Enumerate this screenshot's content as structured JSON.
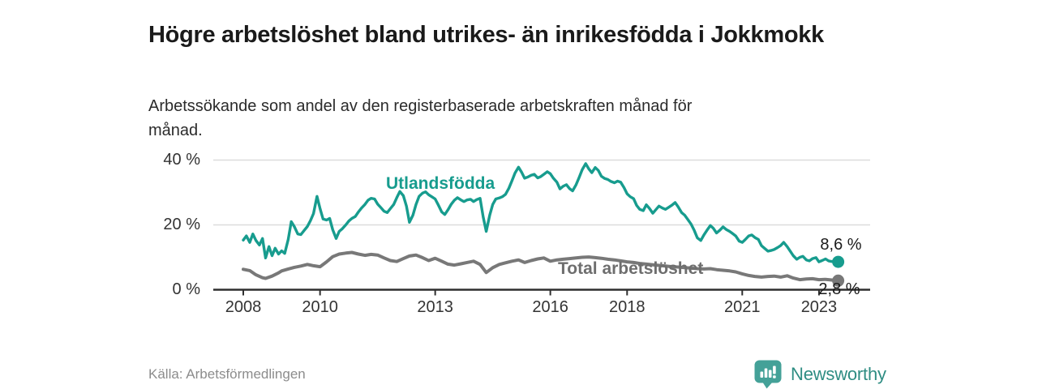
{
  "header": {
    "title": "Högre arbetslöshet bland utrikes- än inrikesfödda i Jokkmokk",
    "subtitle": "Arbetssökande som andel av den registerbaserade arbetskraften månad för månad."
  },
  "footer": {
    "source": "Källa: Arbetsförmedlingen",
    "brand_name": "Newsworthy",
    "brand_icon": "bar-chart-speech-bubble-icon"
  },
  "colors": {
    "accent_teal": "#179c8e",
    "series_gray": "#787878",
    "grid": "#dcdcdc",
    "axis": "#2f2f2f",
    "text_dark": "#1a1a1a",
    "text_muted": "#8c8c8c",
    "brand_teal": "#2f8d83",
    "brand_icon_teal": "#44a198"
  },
  "chart_data": {
    "type": "line",
    "title": "Högre arbetslöshet bland utrikes- än inrikesfödda i Jokkmokk",
    "subtitle": "Arbetssökande som andel av den registerbaserade arbetskraften månad för månad.",
    "xlabel": "",
    "ylabel": "",
    "grid": "horizontal",
    "legend_position": "inline-labels",
    "xlim": [
      2007.2,
      2024.3
    ],
    "ylim": [
      0,
      42
    ],
    "y_ticks": [
      {
        "value": 0,
        "label": "0 %"
      },
      {
        "value": 20,
        "label": "20 %"
      },
      {
        "value": 40,
        "label": "40 %"
      }
    ],
    "x_ticks": [
      {
        "year": 2008,
        "label": "2008"
      },
      {
        "year": 2010,
        "label": "2010"
      },
      {
        "year": 2013,
        "label": "2013"
      },
      {
        "year": 2016,
        "label": "2016"
      },
      {
        "year": 2018,
        "label": "2018"
      },
      {
        "year": 2021,
        "label": "2021"
      },
      {
        "year": 2023,
        "label": "2023"
      }
    ],
    "series": [
      {
        "name": "Utlandsfödda",
        "color": "#179c8e",
        "width": 3.4,
        "end_label": "8,6 %",
        "end_value": 8.6,
        "points": [
          [
            2008.0,
            15.3
          ],
          [
            2008.08,
            16.6
          ],
          [
            2008.17,
            14.6
          ],
          [
            2008.25,
            17.2
          ],
          [
            2008.33,
            15.2
          ],
          [
            2008.42,
            13.8
          ],
          [
            2008.5,
            15.8
          ],
          [
            2008.58,
            9.8
          ],
          [
            2008.67,
            13.3
          ],
          [
            2008.75,
            10.5
          ],
          [
            2008.83,
            12.8
          ],
          [
            2008.92,
            11.0
          ],
          [
            2009.0,
            12.0
          ],
          [
            2009.08,
            11.2
          ],
          [
            2009.17,
            15.5
          ],
          [
            2009.25,
            21.0
          ],
          [
            2009.33,
            19.5
          ],
          [
            2009.42,
            17.2
          ],
          [
            2009.5,
            17.0
          ],
          [
            2009.58,
            18.2
          ],
          [
            2009.67,
            19.5
          ],
          [
            2009.75,
            21.3
          ],
          [
            2009.83,
            23.5
          ],
          [
            2009.92,
            28.8
          ],
          [
            2010.0,
            25.0
          ],
          [
            2010.08,
            21.8
          ],
          [
            2010.17,
            21.5
          ],
          [
            2010.25,
            22.0
          ],
          [
            2010.33,
            18.5
          ],
          [
            2010.42,
            15.8
          ],
          [
            2010.5,
            18.0
          ],
          [
            2010.58,
            18.8
          ],
          [
            2010.67,
            20.0
          ],
          [
            2010.75,
            21.2
          ],
          [
            2010.83,
            22.0
          ],
          [
            2010.92,
            22.6
          ],
          [
            2011.0,
            24.0
          ],
          [
            2011.08,
            25.2
          ],
          [
            2011.17,
            26.3
          ],
          [
            2011.25,
            27.6
          ],
          [
            2011.33,
            28.2
          ],
          [
            2011.42,
            28.0
          ],
          [
            2011.5,
            26.4
          ],
          [
            2011.58,
            25.4
          ],
          [
            2011.67,
            24.2
          ],
          [
            2011.75,
            23.8
          ],
          [
            2011.83,
            25.0
          ],
          [
            2011.92,
            26.3
          ],
          [
            2012.0,
            28.4
          ],
          [
            2012.08,
            30.3
          ],
          [
            2012.17,
            29.0
          ],
          [
            2012.25,
            25.8
          ],
          [
            2012.33,
            20.8
          ],
          [
            2012.42,
            23.0
          ],
          [
            2012.5,
            26.3
          ],
          [
            2012.58,
            28.8
          ],
          [
            2012.67,
            29.8
          ],
          [
            2012.75,
            30.2
          ],
          [
            2012.83,
            29.3
          ],
          [
            2012.92,
            28.6
          ],
          [
            2013.0,
            28.0
          ],
          [
            2013.08,
            26.2
          ],
          [
            2013.17,
            24.0
          ],
          [
            2013.25,
            23.2
          ],
          [
            2013.33,
            24.6
          ],
          [
            2013.42,
            26.4
          ],
          [
            2013.5,
            27.6
          ],
          [
            2013.58,
            28.4
          ],
          [
            2013.67,
            27.7
          ],
          [
            2013.75,
            27.2
          ],
          [
            2013.83,
            27.7
          ],
          [
            2013.92,
            27.9
          ],
          [
            2014.0,
            27.2
          ],
          [
            2014.08,
            27.8
          ],
          [
            2014.17,
            28.2
          ],
          [
            2014.25,
            22.5
          ],
          [
            2014.33,
            18.0
          ],
          [
            2014.42,
            23.0
          ],
          [
            2014.5,
            26.3
          ],
          [
            2014.58,
            28.0
          ],
          [
            2014.67,
            28.3
          ],
          [
            2014.75,
            28.7
          ],
          [
            2014.83,
            29.4
          ],
          [
            2014.92,
            31.3
          ],
          [
            2015.0,
            33.6
          ],
          [
            2015.08,
            36.0
          ],
          [
            2015.17,
            37.8
          ],
          [
            2015.25,
            36.3
          ],
          [
            2015.33,
            34.4
          ],
          [
            2015.42,
            34.8
          ],
          [
            2015.5,
            35.3
          ],
          [
            2015.58,
            35.6
          ],
          [
            2015.67,
            34.5
          ],
          [
            2015.75,
            34.9
          ],
          [
            2015.83,
            35.6
          ],
          [
            2015.92,
            36.4
          ],
          [
            2016.0,
            35.8
          ],
          [
            2016.08,
            34.4
          ],
          [
            2016.17,
            33.2
          ],
          [
            2016.25,
            31.1
          ],
          [
            2016.33,
            31.9
          ],
          [
            2016.42,
            32.4
          ],
          [
            2016.5,
            31.2
          ],
          [
            2016.58,
            30.5
          ],
          [
            2016.67,
            32.4
          ],
          [
            2016.75,
            34.6
          ],
          [
            2016.83,
            37.0
          ],
          [
            2016.92,
            38.9
          ],
          [
            2017.0,
            37.3
          ],
          [
            2017.08,
            36.1
          ],
          [
            2017.17,
            37.7
          ],
          [
            2017.25,
            36.8
          ],
          [
            2017.33,
            35.0
          ],
          [
            2017.42,
            34.3
          ],
          [
            2017.5,
            34.0
          ],
          [
            2017.58,
            33.4
          ],
          [
            2017.67,
            33.0
          ],
          [
            2017.75,
            33.5
          ],
          [
            2017.83,
            33.2
          ],
          [
            2017.92,
            31.5
          ],
          [
            2018.0,
            29.6
          ],
          [
            2018.08,
            28.7
          ],
          [
            2018.17,
            28.1
          ],
          [
            2018.25,
            26.0
          ],
          [
            2018.33,
            24.8
          ],
          [
            2018.42,
            24.4
          ],
          [
            2018.5,
            26.2
          ],
          [
            2018.58,
            25.1
          ],
          [
            2018.67,
            23.6
          ],
          [
            2018.75,
            24.7
          ],
          [
            2018.83,
            25.8
          ],
          [
            2018.92,
            25.2
          ],
          [
            2019.0,
            24.8
          ],
          [
            2019.08,
            25.4
          ],
          [
            2019.17,
            26.1
          ],
          [
            2019.25,
            26.9
          ],
          [
            2019.33,
            25.6
          ],
          [
            2019.42,
            23.8
          ],
          [
            2019.5,
            23.0
          ],
          [
            2019.58,
            21.7
          ],
          [
            2019.67,
            20.2
          ],
          [
            2019.75,
            18.3
          ],
          [
            2019.83,
            16.0
          ],
          [
            2019.92,
            15.2
          ],
          [
            2020.0,
            16.9
          ],
          [
            2020.08,
            18.3
          ],
          [
            2020.17,
            19.8
          ],
          [
            2020.25,
            18.9
          ],
          [
            2020.33,
            17.5
          ],
          [
            2020.42,
            18.4
          ],
          [
            2020.5,
            19.4
          ],
          [
            2020.58,
            18.6
          ],
          [
            2020.67,
            18.0
          ],
          [
            2020.75,
            17.3
          ],
          [
            2020.83,
            16.6
          ],
          [
            2020.92,
            15.0
          ],
          [
            2021.0,
            14.6
          ],
          [
            2021.08,
            15.5
          ],
          [
            2021.17,
            16.6
          ],
          [
            2021.25,
            16.9
          ],
          [
            2021.33,
            16.1
          ],
          [
            2021.42,
            15.5
          ],
          [
            2021.5,
            13.6
          ],
          [
            2021.58,
            12.8
          ],
          [
            2021.67,
            11.9
          ],
          [
            2021.75,
            12.1
          ],
          [
            2021.83,
            12.4
          ],
          [
            2021.92,
            13.0
          ],
          [
            2022.0,
            13.6
          ],
          [
            2022.08,
            14.6
          ],
          [
            2022.17,
            13.3
          ],
          [
            2022.25,
            11.9
          ],
          [
            2022.33,
            10.5
          ],
          [
            2022.42,
            9.4
          ],
          [
            2022.5,
            10.0
          ],
          [
            2022.58,
            10.3
          ],
          [
            2022.67,
            9.2
          ],
          [
            2022.75,
            8.9
          ],
          [
            2022.83,
            9.6
          ],
          [
            2022.92,
            9.9
          ],
          [
            2023.0,
            8.6
          ],
          [
            2023.08,
            9.0
          ],
          [
            2023.17,
            9.5
          ],
          [
            2023.25,
            8.9
          ],
          [
            2023.33,
            8.7
          ],
          [
            2023.42,
            8.9
          ],
          [
            2023.5,
            8.6
          ]
        ]
      },
      {
        "name": "Total arbetslöshet",
        "color": "#787878",
        "width": 4,
        "end_label": "2,8 %",
        "end_value": 2.8,
        "points": [
          [
            2008.0,
            6.3
          ],
          [
            2008.17,
            5.9
          ],
          [
            2008.33,
            4.6
          ],
          [
            2008.5,
            3.7
          ],
          [
            2008.58,
            3.5
          ],
          [
            2008.75,
            4.2
          ],
          [
            2008.92,
            5.2
          ],
          [
            2009.0,
            5.8
          ],
          [
            2009.17,
            6.4
          ],
          [
            2009.33,
            6.9
          ],
          [
            2009.5,
            7.3
          ],
          [
            2009.67,
            7.8
          ],
          [
            2009.83,
            7.4
          ],
          [
            2010.0,
            7.1
          ],
          [
            2010.17,
            8.6
          ],
          [
            2010.33,
            10.2
          ],
          [
            2010.5,
            11.0
          ],
          [
            2010.67,
            11.3
          ],
          [
            2010.83,
            11.5
          ],
          [
            2011.0,
            11.0
          ],
          [
            2011.17,
            10.6
          ],
          [
            2011.33,
            10.9
          ],
          [
            2011.5,
            10.7
          ],
          [
            2011.67,
            9.8
          ],
          [
            2011.83,
            9.0
          ],
          [
            2012.0,
            8.7
          ],
          [
            2012.17,
            9.6
          ],
          [
            2012.33,
            10.4
          ],
          [
            2012.5,
            10.7
          ],
          [
            2012.67,
            9.9
          ],
          [
            2012.83,
            9.0
          ],
          [
            2013.0,
            9.7
          ],
          [
            2013.17,
            8.8
          ],
          [
            2013.33,
            7.9
          ],
          [
            2013.5,
            7.6
          ],
          [
            2013.67,
            8.0
          ],
          [
            2013.83,
            8.4
          ],
          [
            2014.0,
            8.8
          ],
          [
            2014.17,
            7.8
          ],
          [
            2014.33,
            5.3
          ],
          [
            2014.5,
            6.8
          ],
          [
            2014.67,
            7.8
          ],
          [
            2014.83,
            8.3
          ],
          [
            2015.0,
            8.8
          ],
          [
            2015.17,
            9.2
          ],
          [
            2015.33,
            8.4
          ],
          [
            2015.5,
            9.0
          ],
          [
            2015.67,
            9.5
          ],
          [
            2015.83,
            9.8
          ],
          [
            2016.0,
            8.8
          ],
          [
            2016.17,
            9.2
          ],
          [
            2016.33,
            9.4
          ],
          [
            2016.5,
            9.6
          ],
          [
            2016.67,
            9.8
          ],
          [
            2016.83,
            10.0
          ],
          [
            2017.0,
            10.1
          ],
          [
            2017.17,
            9.9
          ],
          [
            2017.33,
            9.7
          ],
          [
            2017.5,
            9.4
          ],
          [
            2017.67,
            9.2
          ],
          [
            2017.83,
            8.9
          ],
          [
            2018.0,
            8.6
          ],
          [
            2018.17,
            8.4
          ],
          [
            2018.33,
            8.1
          ],
          [
            2018.5,
            7.9
          ],
          [
            2018.67,
            7.7
          ],
          [
            2018.83,
            7.5
          ],
          [
            2019.0,
            7.3
          ],
          [
            2019.17,
            7.1
          ],
          [
            2019.33,
            7.0
          ],
          [
            2019.5,
            6.8
          ],
          [
            2019.67,
            6.7
          ],
          [
            2019.83,
            6.5
          ],
          [
            2020.0,
            6.4
          ],
          [
            2020.17,
            6.5
          ],
          [
            2020.33,
            6.2
          ],
          [
            2020.5,
            6.0
          ],
          [
            2020.67,
            5.8
          ],
          [
            2020.83,
            5.5
          ],
          [
            2021.0,
            4.9
          ],
          [
            2021.17,
            4.4
          ],
          [
            2021.33,
            4.1
          ],
          [
            2021.5,
            3.9
          ],
          [
            2021.67,
            4.1
          ],
          [
            2021.83,
            4.2
          ],
          [
            2022.0,
            3.9
          ],
          [
            2022.17,
            4.3
          ],
          [
            2022.33,
            3.6
          ],
          [
            2022.5,
            3.1
          ],
          [
            2022.67,
            3.3
          ],
          [
            2022.83,
            3.4
          ],
          [
            2023.0,
            3.1
          ],
          [
            2023.17,
            3.2
          ],
          [
            2023.33,
            3.0
          ],
          [
            2023.5,
            2.8
          ]
        ]
      }
    ]
  }
}
